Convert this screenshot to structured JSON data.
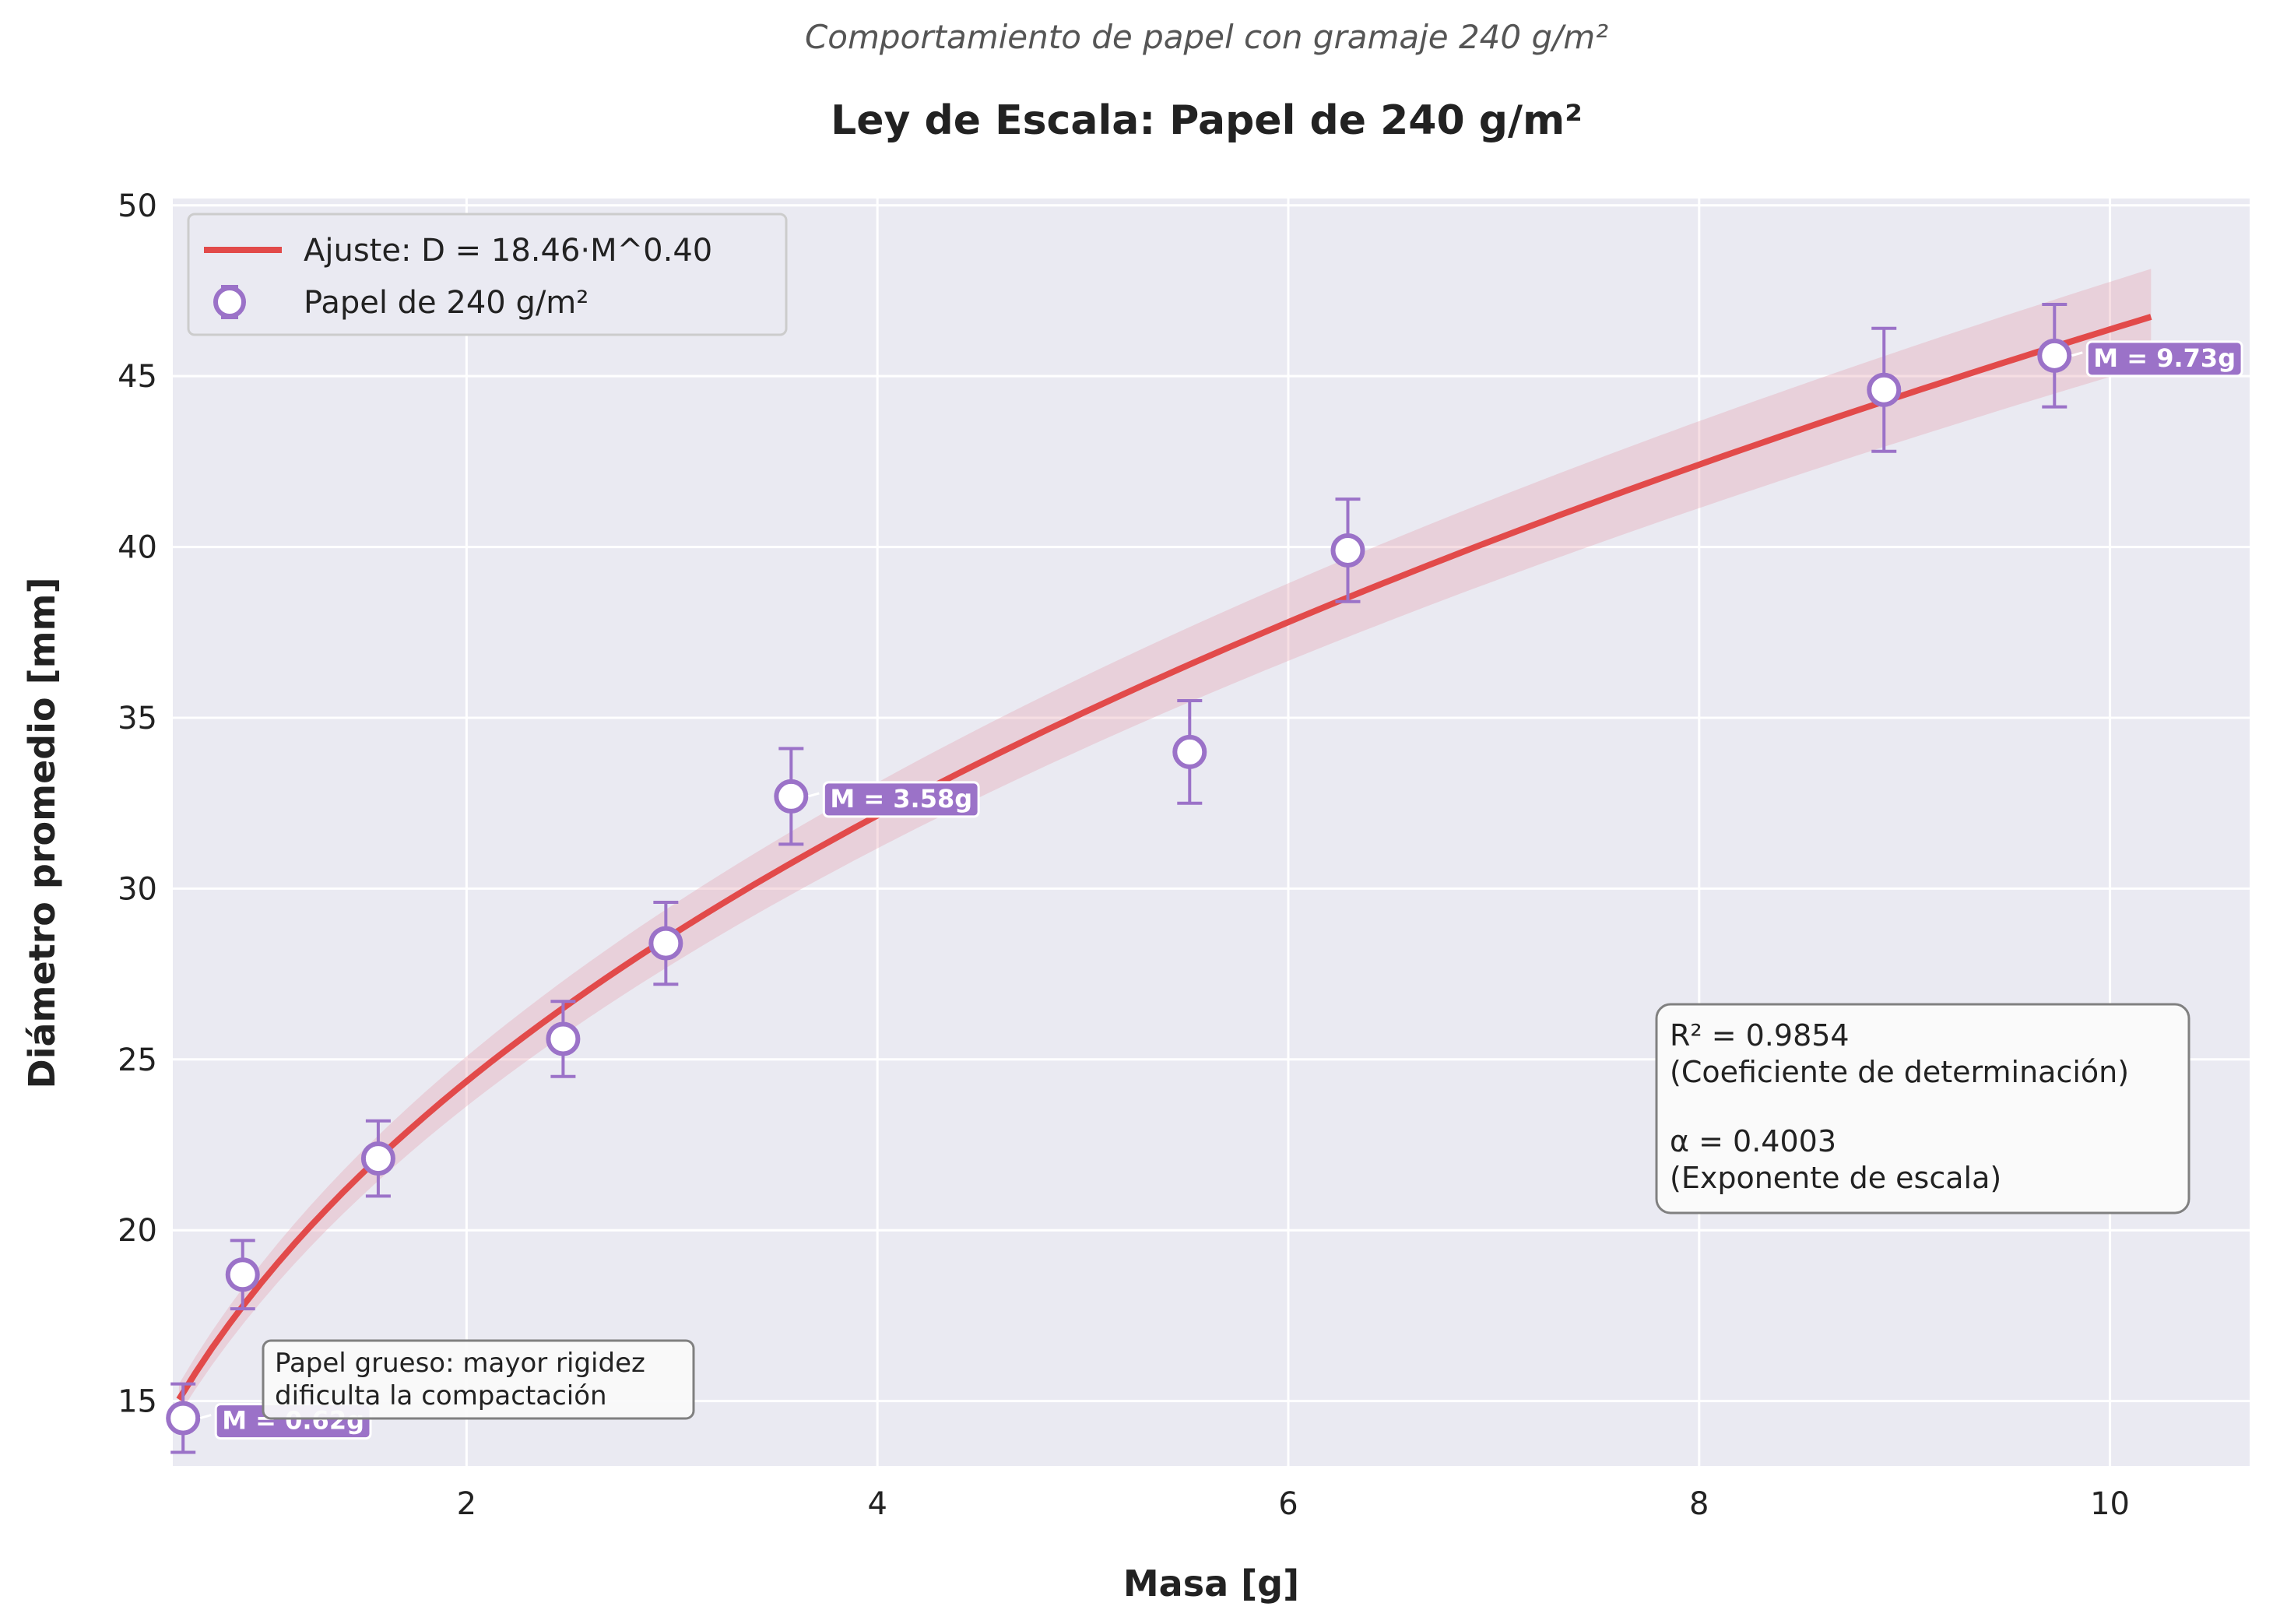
{
  "chart_data": {
    "type": "scatter",
    "suptitle": "Comportamiento de papel con gramaje 240 g/m²",
    "title": "Ley de Escala: Papel de 240 g/m²",
    "xlabel": "Masa [g]",
    "ylabel": "Diámetro promedio [mm]",
    "xlim": [
      0.57,
      10.68
    ],
    "ylim": [
      13.1,
      50.2
    ],
    "x_ticks": [
      2,
      4,
      6,
      8,
      10
    ],
    "y_ticks": [
      15,
      20,
      25,
      30,
      35,
      40,
      45,
      50
    ],
    "grid": true,
    "legend_position": "top-left",
    "colors": {
      "background": "#eaeaf2",
      "fit_line": "#e24a4a",
      "band": "#e6a0b0",
      "points": "#9b72c8"
    },
    "fit": {
      "label": "Ajuste: D = 18.46·M^0.40",
      "coefficient": 18.46,
      "exponent": 0.4,
      "x_range": [
        0.6,
        10.2
      ],
      "band_halfwidth_fraction": 0.03
    },
    "series": [
      {
        "name": "Papel de 240 g/m²",
        "x": [
          0.62,
          0.91,
          1.57,
          2.47,
          2.97,
          3.58,
          5.52,
          6.29,
          8.9,
          9.73
        ],
        "y": [
          14.5,
          18.7,
          22.1,
          25.6,
          28.4,
          32.7,
          34.0,
          39.9,
          44.6,
          45.6
        ],
        "yerr": [
          1.0,
          1.0,
          1.1,
          1.1,
          1.2,
          1.4,
          1.5,
          1.5,
          1.8,
          1.5
        ]
      }
    ],
    "annotations": [
      {
        "text": "M = 0.62g",
        "x": 0.62,
        "y": 14.5
      },
      {
        "text": "M = 3.58g",
        "x": 3.58,
        "y": 32.7
      },
      {
        "text": "M = 9.73g",
        "x": 9.73,
        "y": 45.6
      }
    ],
    "stats_box": {
      "line1": "R² = 0.9854",
      "line2": "(Coeficiente de determinación)",
      "line3": "α = 0.4003",
      "line4": "(Exponente de escala)"
    },
    "note_box": {
      "line1": "Papel grueso: mayor rigidez",
      "line2": "dificulta la compactación"
    }
  }
}
